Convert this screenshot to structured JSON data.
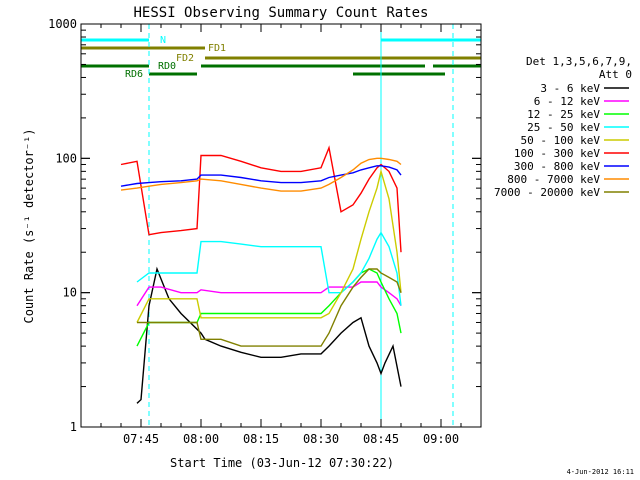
{
  "chart_data": {
    "type": "line",
    "title": "HESSI Observing Summary Count Rates",
    "xlabel": "Start Time (03-Jun-12 07:30:22)",
    "ylabel": "Count Rate (s⁻¹ detector⁻¹)",
    "yscale": "log",
    "ylim": [
      1,
      1000
    ],
    "xlim_minutes_after_0730": [
      0,
      100
    ],
    "x_tick_labels": [
      "07:45",
      "08:00",
      "08:15",
      "08:30",
      "08:45",
      "09:00"
    ],
    "x_tick_values": [
      15,
      30,
      45,
      60,
      75,
      90
    ],
    "y_tick_labels": [
      "1",
      "10",
      "100",
      "1000"
    ],
    "y_tick_values": [
      1,
      10,
      100,
      1000
    ],
    "legend_title": "Det 1,3,5,6,7,9,",
    "legend_subtitle": "Att 0",
    "legend_position": "right",
    "footer_date": "4-Jun-2012 16:11",
    "flag_bars": [
      {
        "label": "N",
        "color": "#00ffff",
        "segments": [
          [
            0,
            17
          ],
          [
            75,
            100
          ]
        ]
      },
      {
        "label": "FD1",
        "color": "#808000",
        "segments": [
          [
            0,
            31
          ]
        ]
      },
      {
        "label": "FD2",
        "color": "#808000",
        "segments": [
          [
            31,
            100
          ]
        ]
      },
      {
        "label": "RD0",
        "color": "#007000",
        "segments": [
          [
            0,
            17
          ],
          [
            30,
            65
          ],
          [
            65,
            86
          ],
          [
            88,
            100
          ]
        ]
      },
      {
        "label": "RD6",
        "color": "#007000",
        "segments": [
          [
            17,
            29
          ],
          [
            68,
            91
          ]
        ]
      }
    ],
    "vertical_lines": [
      {
        "x": 0,
        "style": "solid"
      },
      {
        "x": 17,
        "style": "dashed"
      },
      {
        "x": 75,
        "style": "solid"
      },
      {
        "x": 93,
        "style": "dashed"
      }
    ],
    "series": [
      {
        "name": "3 - 6 keV",
        "color": "#000000",
        "x": [
          14,
          15,
          17,
          19,
          22,
          25,
          30,
          31,
          35,
          40,
          45,
          50,
          55,
          60,
          62,
          65,
          68,
          70,
          72,
          74,
          75,
          76,
          78,
          80
        ],
        "y": [
          1.5,
          1.6,
          8,
          15,
          9,
          7,
          5,
          4.5,
          4,
          3.6,
          3.3,
          3.3,
          3.5,
          3.5,
          4,
          5,
          6,
          6.5,
          4,
          3,
          2.5,
          3,
          4,
          2
        ]
      },
      {
        "name": "6 - 12 keV",
        "color": "#ff00ff",
        "x": [
          14,
          17,
          20,
          25,
          29,
          30,
          35,
          40,
          45,
          50,
          55,
          60,
          62,
          65,
          68,
          70,
          72,
          74,
          75,
          77,
          79,
          80
        ],
        "y": [
          8,
          11,
          11,
          10,
          10,
          10.5,
          10,
          10,
          10,
          10,
          10,
          10,
          11,
          11,
          11,
          12,
          12,
          12,
          11,
          10,
          9,
          8
        ]
      },
      {
        "name": "12 - 25 keV",
        "color": "#00ff00",
        "x": [
          14,
          17,
          20,
          25,
          29,
          30,
          35,
          40,
          45,
          50,
          55,
          60,
          62,
          65,
          68,
          70,
          72,
          74,
          75,
          77,
          79,
          80
        ],
        "y": [
          4,
          6,
          6,
          6,
          6,
          7,
          7,
          7,
          7,
          7,
          7,
          7,
          8,
          10,
          12,
          14,
          15,
          14,
          12,
          9,
          7,
          5
        ]
      },
      {
        "name": "25 - 50 keV",
        "color": "#00ffff",
        "x": [
          14,
          17,
          20,
          25,
          29,
          30,
          35,
          40,
          45,
          50,
          55,
          60,
          62,
          65,
          68,
          70,
          72,
          74,
          75,
          77,
          79,
          80
        ],
        "y": [
          12,
          14,
          14,
          14,
          14,
          24,
          24,
          23,
          22,
          22,
          22,
          22,
          10,
          10,
          12,
          14,
          18,
          25,
          28,
          22,
          14,
          8
        ]
      },
      {
        "name": "50 - 100 keV",
        "color": "#cccc00",
        "x": [
          14,
          17,
          20,
          25,
          29,
          30,
          35,
          40,
          45,
          50,
          55,
          60,
          62,
          65,
          68,
          70,
          72,
          74,
          75,
          77,
          79,
          80
        ],
        "y": [
          6,
          9,
          9,
          9,
          9,
          6.5,
          6.5,
          6.5,
          6.5,
          6.5,
          6.5,
          6.5,
          7,
          10,
          15,
          25,
          40,
          60,
          80,
          50,
          20,
          10
        ]
      },
      {
        "name": "100 - 300 keV",
        "color": "#ff0000",
        "x": [
          10,
          14,
          17,
          20,
          25,
          29,
          30,
          35,
          40,
          45,
          50,
          55,
          60,
          62,
          65,
          68,
          70,
          72,
          74,
          75,
          77,
          79,
          80
        ],
        "y": [
          90,
          95,
          27,
          28,
          29,
          30,
          105,
          105,
          95,
          85,
          80,
          80,
          85,
          120,
          40,
          45,
          55,
          70,
          85,
          90,
          80,
          60,
          20
        ]
      },
      {
        "name": "300 - 800 keV",
        "color": "#0000ff",
        "x": [
          10,
          14,
          17,
          20,
          25,
          29,
          30,
          35,
          40,
          45,
          50,
          55,
          60,
          62,
          65,
          68,
          70,
          72,
          74,
          75,
          77,
          79,
          80
        ],
        "y": [
          62,
          65,
          66,
          67,
          68,
          70,
          75,
          75,
          72,
          68,
          66,
          66,
          68,
          72,
          75,
          78,
          82,
          85,
          88,
          88,
          86,
          82,
          75
        ]
      },
      {
        "name": "800 - 7000 keV",
        "color": "#ff8c00",
        "x": [
          10,
          14,
          17,
          20,
          25,
          29,
          30,
          35,
          40,
          45,
          50,
          55,
          60,
          62,
          65,
          68,
          70,
          72,
          74,
          75,
          77,
          79,
          80
        ],
        "y": [
          58,
          60,
          62,
          64,
          66,
          68,
          70,
          68,
          64,
          60,
          57,
          57,
          60,
          64,
          72,
          82,
          92,
          98,
          100,
          100,
          98,
          95,
          90
        ]
      },
      {
        "name": "7000 - 20000 keV",
        "color": "#808000",
        "x": [
          14,
          17,
          20,
          25,
          29,
          30,
          35,
          40,
          45,
          50,
          55,
          60,
          62,
          65,
          68,
          70,
          72,
          74,
          75,
          77,
          79,
          80
        ],
        "y": [
          6,
          6,
          6,
          6,
          6,
          4.5,
          4.5,
          4,
          4,
          4,
          4,
          4,
          5,
          8,
          11,
          13,
          15,
          15,
          14,
          13,
          12,
          10
        ]
      }
    ]
  }
}
